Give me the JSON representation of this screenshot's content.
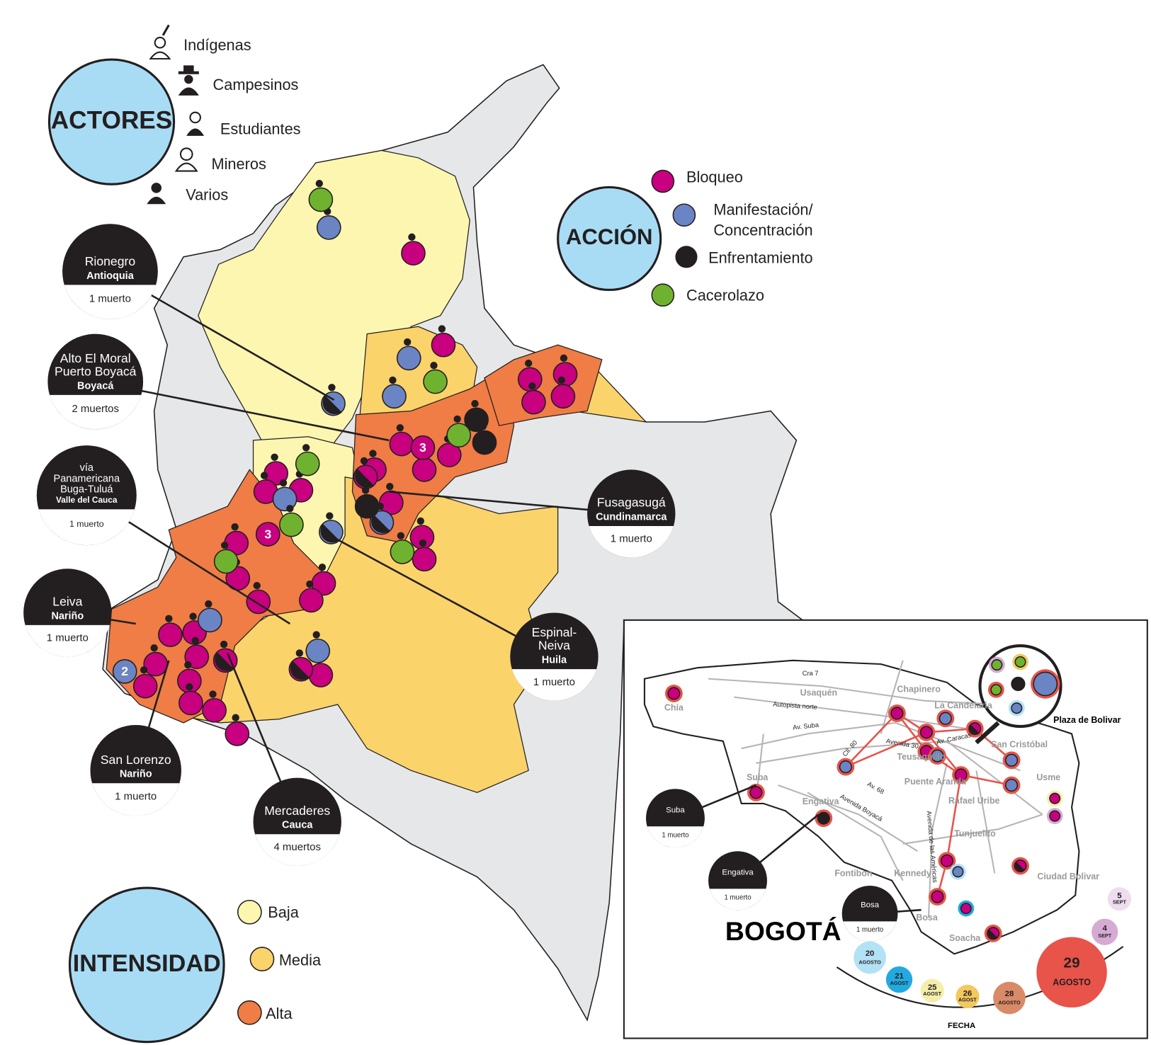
{
  "actors": {
    "title": "ACTORES",
    "items": [
      "Indígenas",
      "Campesinos",
      "Estudiantes",
      "Mineros",
      "Varios"
    ]
  },
  "action": {
    "title": "ACCIÓN",
    "items": [
      [
        "Bloqueo"
      ],
      [
        "Manifestación/",
        "Concentración"
      ],
      [
        "Enfrentamiento"
      ],
      [
        "Cacerolazo"
      ]
    ]
  },
  "intensity": {
    "title": "INTENSIDAD",
    "items": [
      "Baja",
      "Media",
      "Alta"
    ]
  },
  "map_counts": [
    "3",
    "3",
    "2"
  ],
  "deaths": [
    {
      "lines": [
        "Rionegro"
      ],
      "region": "Antioquia",
      "deaths": "1 muerto"
    },
    {
      "lines": [
        "Alto El Moral",
        "Puerto Boyacá"
      ],
      "region": "Boyacá",
      "deaths": "2 muertos"
    },
    {
      "lines": [
        "vía",
        "Panamericana",
        "Buga-Tuluá"
      ],
      "region": "Valle del Cauca",
      "deaths": "1 muerto"
    },
    {
      "lines": [
        "Leiva"
      ],
      "region": "Nariño",
      "deaths": "1 muerto"
    },
    {
      "lines": [
        "San Lorenzo"
      ],
      "region": "Nariño",
      "deaths": "1 muerto"
    },
    {
      "lines": [
        "Mercaderes"
      ],
      "region": "Cauca",
      "deaths": "4 muertos"
    },
    {
      "lines": [
        "Espinal-",
        "Neiva"
      ],
      "region": "Huila",
      "deaths": "1 muerto"
    },
    {
      "lines": [
        "Fusagasugá"
      ],
      "region": "Cundinamarca",
      "deaths": "1 muerto"
    }
  ],
  "bogota": {
    "title": "BOGOTÁ",
    "plaza": "Plaza de Bolivar",
    "localities": [
      "Chía",
      "Usaquén",
      "Chapinero",
      "La Candelaria",
      "San Cristóbal",
      "Usme",
      "Suba",
      "Engativa",
      "Teusaquillo",
      "Puente Aranda",
      "Rafael Uribe",
      "Tunjuelito",
      "Fontibon",
      "Kennedy",
      "Ciudad Bolivar",
      "Bosa",
      "Soacha"
    ],
    "streets": [
      "Cra 7",
      "Autopista norte",
      "Av. Suba",
      "Avenida 30",
      "Av. Caracas",
      "Cll. 80",
      "Av. 68",
      "Avenida Boyacá",
      "Avenida de las Américas"
    ],
    "deaths": [
      {
        "name": "Suba",
        "deaths": "1 muerto"
      },
      {
        "name": "Engativa",
        "deaths": "1 muerto"
      },
      {
        "name": "Bosa",
        "deaths": "1 muerto"
      }
    ],
    "dates_label": "FECHA",
    "dates": [
      {
        "day": "20",
        "month": "AGOSTO"
      },
      {
        "day": "21",
        "month": "AGOST"
      },
      {
        "day": "25",
        "month": "AGOST"
      },
      {
        "day": "26",
        "month": "AGOST"
      },
      {
        "day": "28",
        "month": "AGOSTO"
      },
      {
        "day": "29",
        "month": "AGOSTO"
      },
      {
        "day": "4",
        "month": "SEPT"
      },
      {
        "day": "5",
        "month": "SEPT"
      }
    ]
  }
}
